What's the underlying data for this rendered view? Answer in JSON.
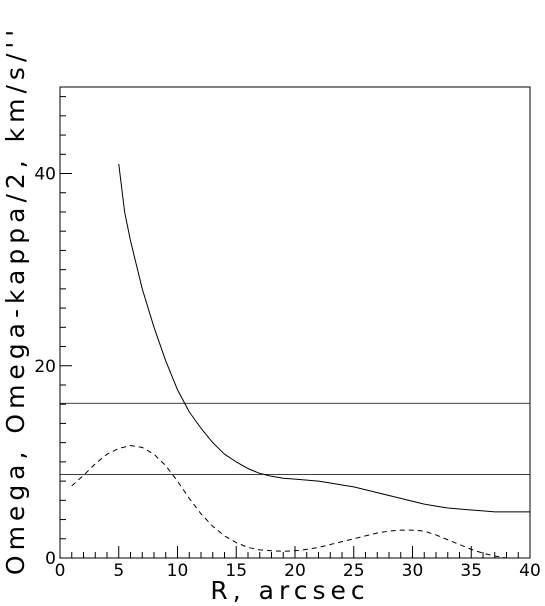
{
  "chart_data": {
    "type": "line",
    "xlabel": "R, arcsec",
    "ylabel": "Omega, Omega-kappa/2, km/s/''",
    "xlim": [
      0,
      40
    ],
    "ylim": [
      0,
      49
    ],
    "grid": false,
    "x_ticks": [
      0,
      5,
      10,
      15,
      20,
      25,
      30,
      35,
      40
    ],
    "y_ticks": [
      0,
      20,
      40
    ],
    "x_minor_step": 1,
    "y_minor_step": 2,
    "series": [
      {
        "style": "solid",
        "points": [
          [
            5,
            41
          ],
          [
            5.5,
            36
          ],
          [
            6,
            33
          ],
          [
            7,
            28
          ],
          [
            8,
            24
          ],
          [
            9,
            20.5
          ],
          [
            10,
            17.5
          ],
          [
            11,
            15.2
          ],
          [
            12,
            13.5
          ],
          [
            13,
            12
          ],
          [
            14,
            10.8
          ],
          [
            15,
            10
          ],
          [
            16,
            9.3
          ],
          [
            17,
            8.8
          ],
          [
            18,
            8.5
          ],
          [
            19,
            8.3
          ],
          [
            20,
            8.2
          ],
          [
            21,
            8.1
          ],
          [
            22,
            8
          ],
          [
            23,
            7.8
          ],
          [
            24,
            7.6
          ],
          [
            25,
            7.4
          ],
          [
            26,
            7.1
          ],
          [
            27,
            6.8
          ],
          [
            28,
            6.5
          ],
          [
            29,
            6.2
          ],
          [
            30,
            5.9
          ],
          [
            31,
            5.6
          ],
          [
            32,
            5.4
          ],
          [
            33,
            5.2
          ],
          [
            34,
            5.1
          ],
          [
            35,
            5
          ],
          [
            36,
            4.9
          ],
          [
            37,
            4.8
          ],
          [
            38,
            4.8
          ],
          [
            39,
            4.8
          ],
          [
            40,
            4.8
          ]
        ]
      },
      {
        "style": "dashed",
        "points": [
          [
            1,
            7.5
          ],
          [
            2,
            8.6
          ],
          [
            3,
            9.8
          ],
          [
            4,
            10.8
          ],
          [
            5,
            11.4
          ],
          [
            6,
            11.7
          ],
          [
            7,
            11.5
          ],
          [
            8,
            10.8
          ],
          [
            9,
            9.6
          ],
          [
            10,
            8
          ],
          [
            11,
            6.2
          ],
          [
            12,
            4.6
          ],
          [
            13,
            3.3
          ],
          [
            14,
            2.3
          ],
          [
            15,
            1.6
          ],
          [
            16,
            1.1
          ],
          [
            17,
            0.85
          ],
          [
            18,
            0.75
          ],
          [
            19,
            0.7
          ],
          [
            20,
            0.75
          ],
          [
            21,
            0.9
          ],
          [
            22,
            1.1
          ],
          [
            23,
            1.4
          ],
          [
            24,
            1.7
          ],
          [
            25,
            2
          ],
          [
            26,
            2.3
          ],
          [
            27,
            2.6
          ],
          [
            28,
            2.8
          ],
          [
            29,
            2.9
          ],
          [
            30,
            2.9
          ],
          [
            31,
            2.8
          ],
          [
            32,
            2.4
          ],
          [
            33,
            1.9
          ],
          [
            34,
            1.4
          ],
          [
            35,
            0.9
          ],
          [
            36,
            0.5
          ],
          [
            37,
            0.2
          ],
          [
            38,
            0
          ],
          [
            39,
            0
          ],
          [
            40,
            0
          ]
        ]
      }
    ],
    "hlines": [
      16.1,
      8.7
    ]
  }
}
